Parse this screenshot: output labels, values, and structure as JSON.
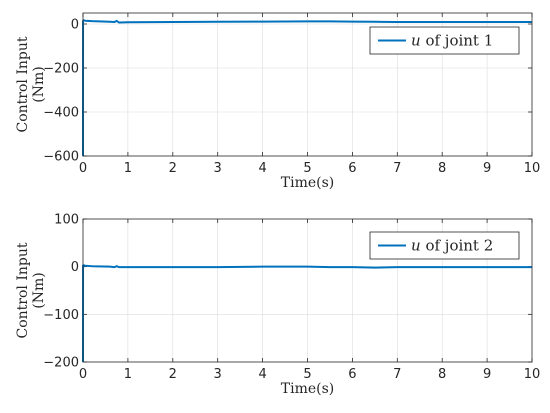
{
  "chart_data": [
    {
      "type": "line",
      "xlabel": "Time(s)",
      "ylabel": [
        "Control Input",
        "(Nm)"
      ],
      "xlim": [
        0,
        10
      ],
      "ylim": [
        -600,
        50
      ],
      "xticks": [
        0,
        1,
        2,
        3,
        4,
        5,
        6,
        7,
        8,
        9,
        10
      ],
      "yticks": [
        -600,
        -400,
        -200,
        0
      ],
      "grid": true,
      "legend_position": "top-right",
      "color": "#0072BD",
      "series": [
        {
          "legend_var": "u",
          "legend_rest": " of joint 1",
          "x": [
            0,
            0.001,
            0.01,
            0.05,
            0.2,
            0.6,
            0.7,
            0.75,
            0.8,
            1.0,
            2.0,
            3.0,
            4.0,
            5.0,
            5.5,
            6.0,
            6.5,
            7.0,
            8.0,
            9.0,
            10.0
          ],
          "y": [
            -600,
            12,
            17,
            15,
            13,
            10,
            9,
            14,
            7,
            8,
            9,
            10,
            11,
            12,
            12,
            11,
            10,
            9,
            9,
            9,
            9
          ]
        }
      ]
    },
    {
      "type": "line",
      "xlabel": "Time(s)",
      "ylabel": [
        "Control Input",
        "(Nm)"
      ],
      "xlim": [
        0,
        10
      ],
      "ylim": [
        -200,
        100
      ],
      "xticks": [
        0,
        1,
        2,
        3,
        4,
        5,
        6,
        7,
        8,
        9,
        10
      ],
      "yticks": [
        -200,
        -100,
        0,
        100
      ],
      "grid": true,
      "legend_position": "top-right",
      "color": "#0072BD",
      "series": [
        {
          "legend_var": "u",
          "legend_rest": " of joint 2",
          "x": [
            0,
            0.001,
            0.01,
            0.05,
            0.2,
            0.6,
            0.7,
            0.75,
            0.8,
            1.0,
            2.0,
            3.0,
            4.0,
            5.0,
            5.5,
            6.0,
            6.5,
            7.0,
            8.0,
            9.0,
            10.0
          ],
          "y": [
            -200,
            2,
            3,
            2,
            1,
            0,
            -1,
            1,
            -1,
            -1,
            -1,
            -1,
            0,
            0,
            -1,
            -1,
            -2,
            -1,
            -1,
            -1,
            -1
          ]
        }
      ]
    }
  ]
}
